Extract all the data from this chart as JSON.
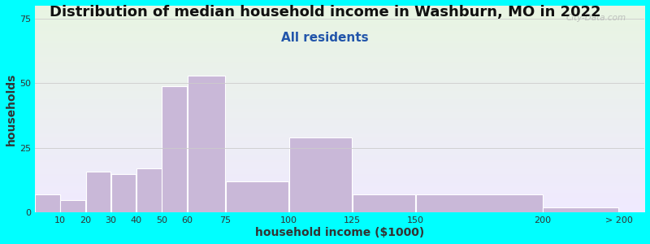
{
  "title": "Distribution of median household income in Washburn, MO in 2022",
  "subtitle": "All residents",
  "xlabel": "household income ($1000)",
  "ylabel": "households",
  "background_color": "#00FFFF",
  "bar_color": "#C9B8D8",
  "bar_edge_color": "#FFFFFF",
  "values": [
    7,
    5,
    16,
    15,
    17,
    49,
    53,
    12,
    29,
    7,
    7,
    2
  ],
  "bar_lefts": [
    0,
    10,
    20,
    30,
    40,
    50,
    60,
    75,
    100,
    125,
    150,
    200
  ],
  "bar_rights": [
    10,
    20,
    30,
    40,
    50,
    60,
    75,
    100,
    125,
    150,
    200,
    230
  ],
  "ylim": [
    0,
    80
  ],
  "yticks": [
    0,
    25,
    50,
    75
  ],
  "xtick_positions": [
    10,
    20,
    30,
    40,
    50,
    60,
    75,
    100,
    125,
    150,
    200,
    230
  ],
  "xtick_labels": [
    "10",
    "20",
    "30",
    "40",
    "50",
    "60",
    "75",
    "100",
    "125",
    "150",
    "200",
    "> 200"
  ],
  "xlim": [
    0,
    240
  ],
  "title_fontsize": 13,
  "subtitle_fontsize": 11,
  "axis_label_fontsize": 10,
  "watermark": "City-Data.com",
  "gradient_colors": [
    "#f0eaff",
    "#e8f5e2"
  ],
  "title_color": "#111111",
  "subtitle_color": "#2255aa",
  "label_color": "#333333"
}
